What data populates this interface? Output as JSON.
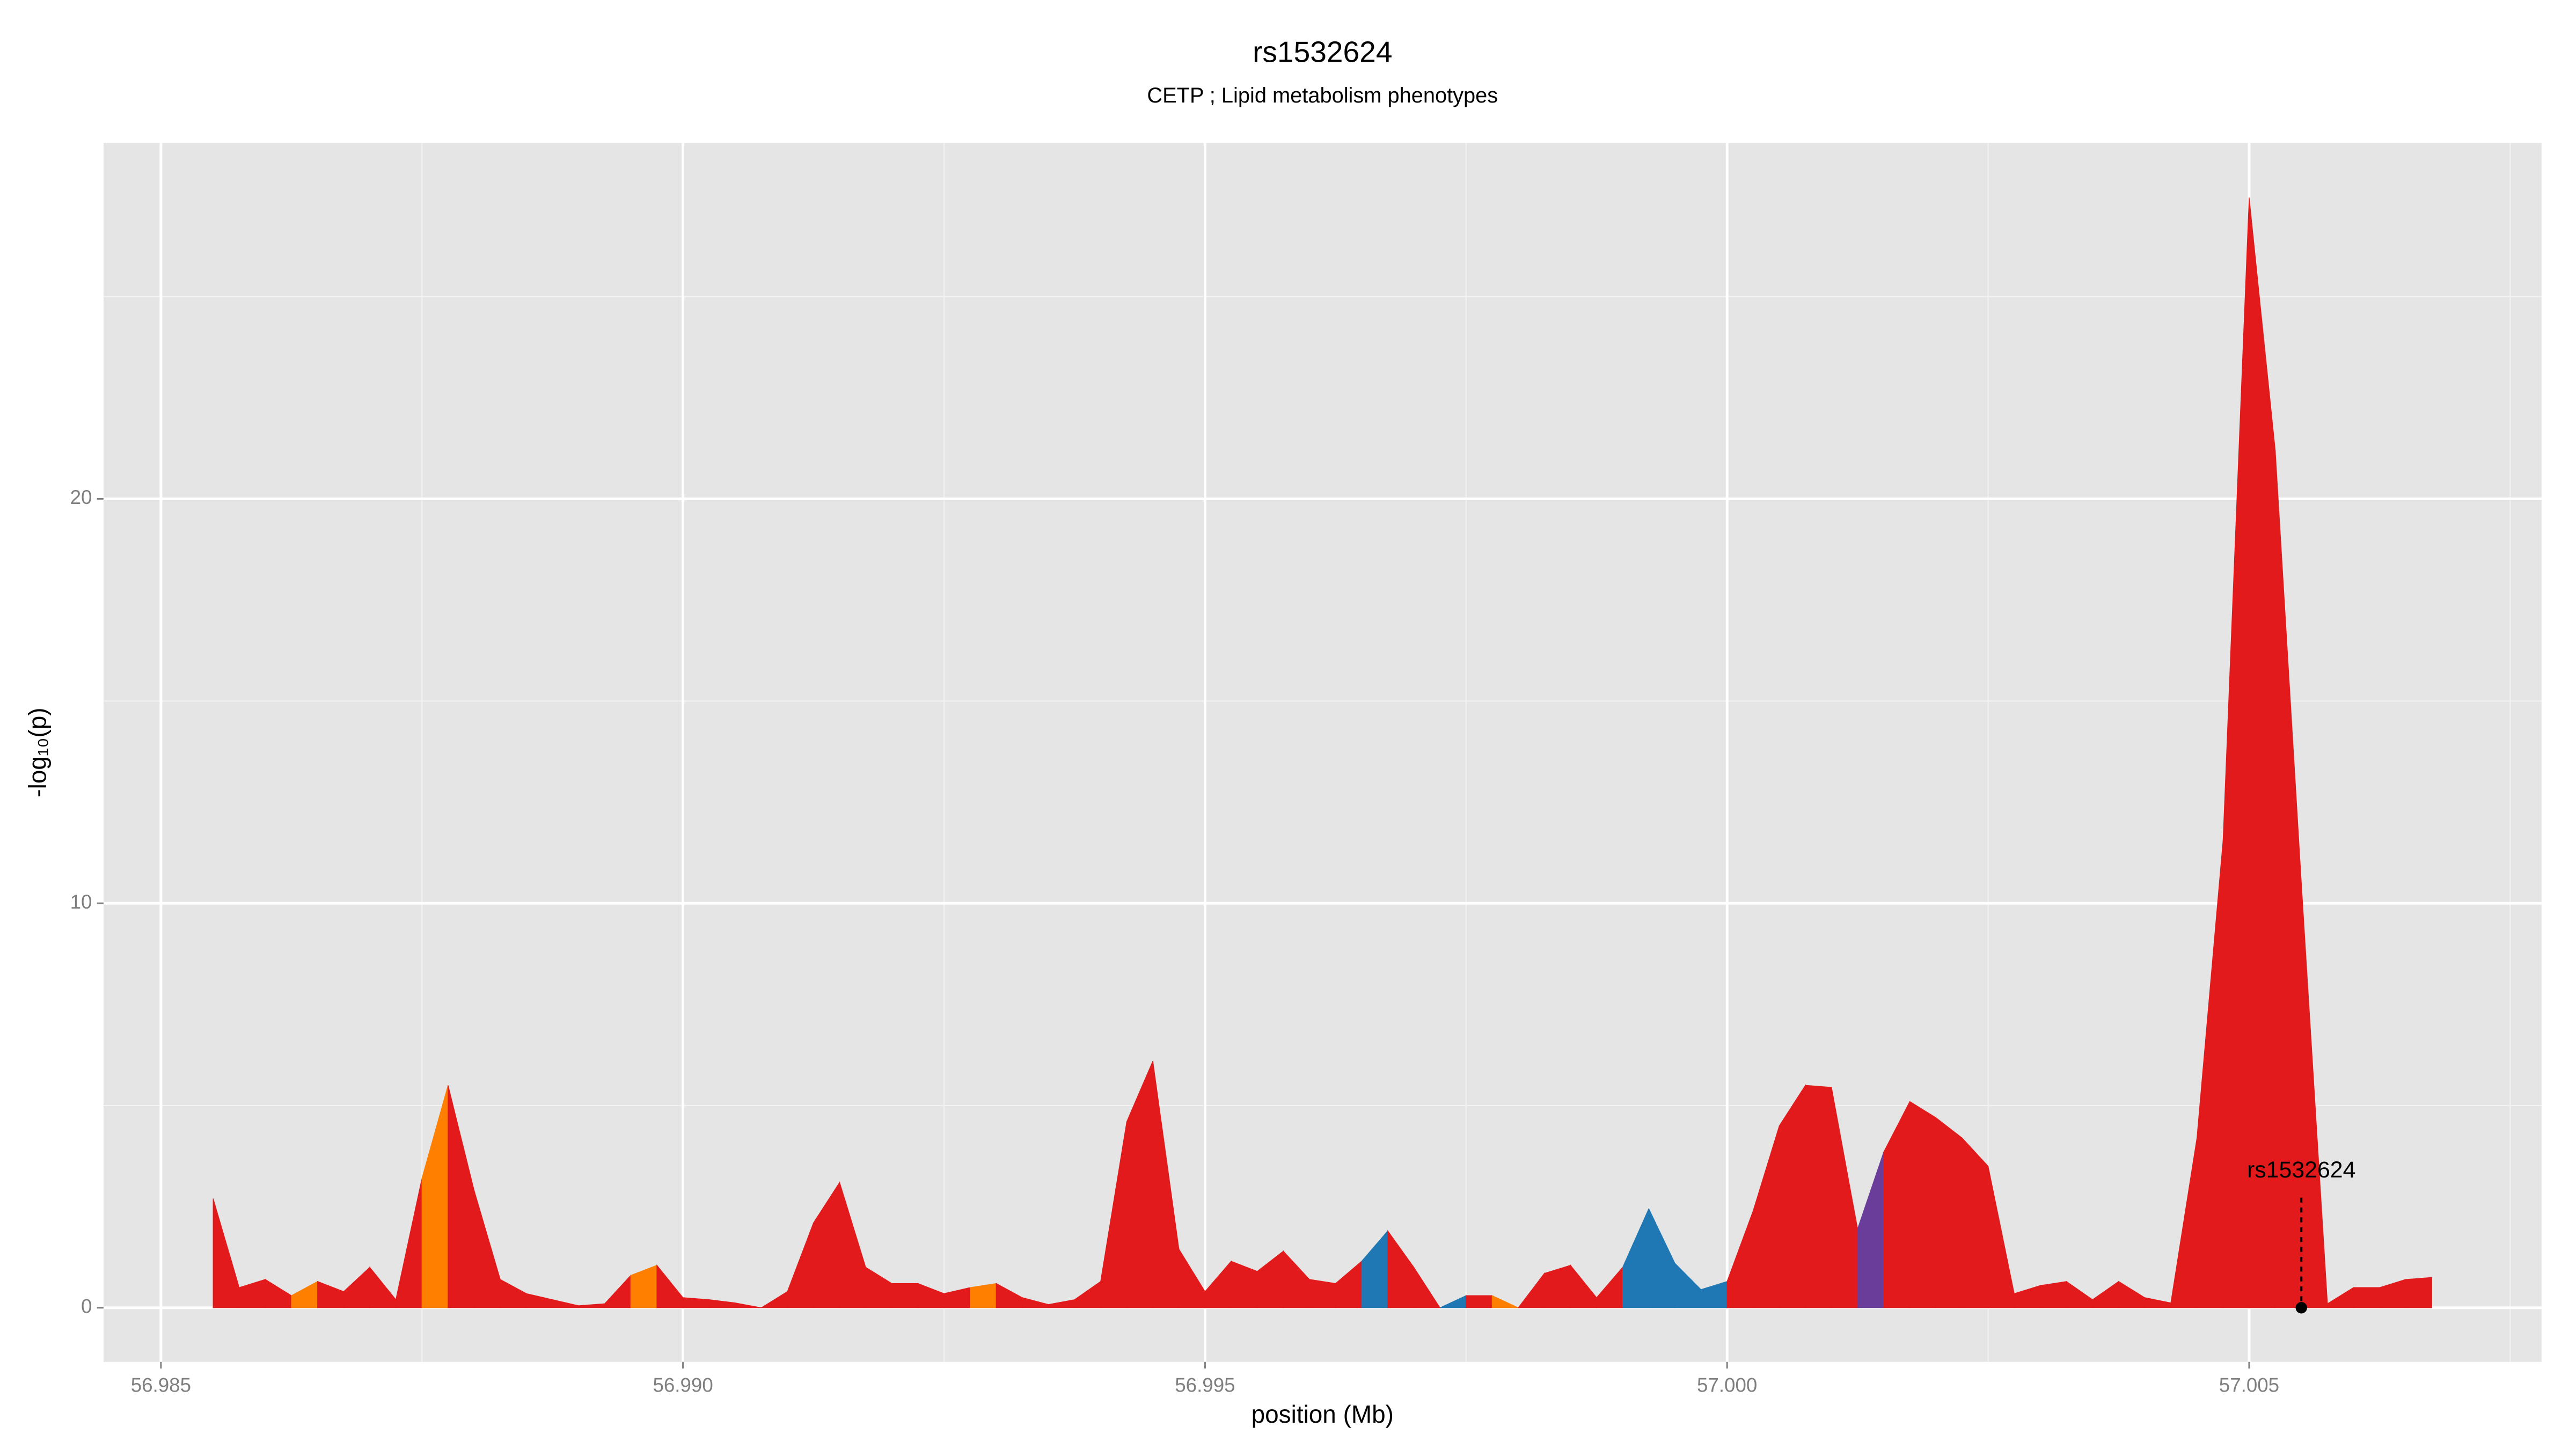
{
  "chart_data": {
    "type": "area",
    "title": "rs1532624",
    "subtitle": "CETP ; Lipid metabolism phenotypes",
    "x_label": "position (Mb)",
    "y_label": "-log₁₀(p)",
    "x": [
      56.9855,
      56.98575,
      56.986,
      56.98625,
      56.9865,
      56.98675,
      56.987,
      56.98725,
      56.9875,
      56.98775,
      56.988,
      56.98825,
      56.9885,
      56.98875,
      56.989,
      56.98925,
      56.9895,
      56.98975,
      56.99,
      56.99025,
      56.9905,
      56.99075,
      56.991,
      56.99125,
      56.9915,
      56.99175,
      56.992,
      56.99225,
      56.9925,
      56.99275,
      56.993,
      56.99325,
      56.9935,
      56.99375,
      56.994,
      56.99425,
      56.9945,
      56.99475,
      56.995,
      56.99525,
      56.9955,
      56.99575,
      56.996,
      56.99625,
      56.9965,
      56.99675,
      56.997,
      56.99725,
      56.9975,
      56.99775,
      56.998,
      56.99825,
      56.9985,
      56.99875,
      56.999,
      56.99925,
      56.9995,
      56.99975,
      57.0,
      57.00025,
      57.0005,
      57.00075,
      57.001,
      57.00125,
      57.0015,
      57.00175,
      57.002,
      57.00225,
      57.0025,
      57.00275,
      57.003,
      57.00325,
      57.0035,
      57.00375,
      57.004,
      57.00425,
      57.0045,
      57.00475,
      57.005,
      57.00525,
      57.0055,
      57.00575,
      57.006,
      57.00625,
      57.0065,
      57.00675
    ],
    "values": [
      2.7,
      0.5,
      0.7,
      0.3,
      0.65,
      0.4,
      1.0,
      0.2,
      3.2,
      5.5,
      2.9,
      0.7,
      0.35,
      0.2,
      0.05,
      0.1,
      0.8,
      1.05,
      0.25,
      0.2,
      0.12,
      0.0,
      0.4,
      2.1,
      3.1,
      1.0,
      0.6,
      0.6,
      0.35,
      0.5,
      0.6,
      0.25,
      0.08,
      0.2,
      0.65,
      4.6,
      6.1,
      1.45,
      0.4,
      1.15,
      0.9,
      1.4,
      0.7,
      0.6,
      1.15,
      1.9,
      1.0,
      0.0,
      0.3,
      0.3,
      0.0,
      0.85,
      1.05,
      0.25,
      1.0,
      2.45,
      1.1,
      0.45,
      0.65,
      2.4,
      4.5,
      5.5,
      5.45,
      1.95,
      3.85,
      5.1,
      4.7,
      4.2,
      3.5,
      0.35,
      0.55,
      0.65,
      0.2,
      0.65,
      0.25,
      0.12,
      4.2,
      11.55,
      27.45,
      21.2,
      10.5,
      0.1,
      0.5,
      0.5,
      0.7,
      0.75
    ],
    "colors": [
      "#E31A1C",
      "#E31A1C",
      "#E31A1C",
      "#FF7F00",
      "#E31A1C",
      "#E31A1C",
      "#E31A1C",
      "#E31A1C",
      "#FF7F00",
      "#E31A1C",
      "#E31A1C",
      "#E31A1C",
      "#E31A1C",
      "#E31A1C",
      "#E31A1C",
      "#E31A1C",
      "#FF7F00",
      "#E31A1C",
      "#E31A1C",
      "#E31A1C",
      "#E31A1C",
      "#E31A1C",
      "#E31A1C",
      "#E31A1C",
      "#E31A1C",
      "#E31A1C",
      "#E31A1C",
      "#E31A1C",
      "#E31A1C",
      "#FF7F00",
      "#E31A1C",
      "#E31A1C",
      "#E31A1C",
      "#E31A1C",
      "#E31A1C",
      "#E31A1C",
      "#E31A1C",
      "#E31A1C",
      "#E31A1C",
      "#E31A1C",
      "#E31A1C",
      "#E31A1C",
      "#E31A1C",
      "#E31A1C",
      "#1F78B4",
      "#E31A1C",
      "#E31A1C",
      "#1F78B4",
      "#E31A1C",
      "#FF7F00",
      "#E31A1C",
      "#E31A1C",
      "#E31A1C",
      "#E31A1C",
      "#1F78B4",
      "#1F78B4",
      "#1F78B4",
      "#1F78B4",
      "#E31A1C",
      "#E31A1C",
      "#E31A1C",
      "#E31A1C",
      "#E31A1C",
      "#6A3D9A",
      "#E31A1C",
      "#E31A1C",
      "#E31A1C",
      "#E31A1C",
      "#E31A1C",
      "#E31A1C",
      "#E31A1C",
      "#E31A1C",
      "#E31A1C",
      "#E31A1C",
      "#E31A1C",
      "#E31A1C",
      "#E31A1C",
      "#E31A1C",
      "#E31A1C",
      "#E31A1C",
      "#E31A1C",
      "#E31A1C",
      "#E31A1C",
      "#E31A1C",
      "#E31A1C",
      "#E31A1C"
    ],
    "xlim": [
      56.98445,
      57.0078
    ],
    "ylim": [
      -1.34,
      28.8
    ],
    "xticks": [
      56.985,
      {
        "value": 56.99,
        "label": "56.990"
      },
      56.995,
      {
        "value": 57.0,
        "label": "57.000"
      },
      57.005
    ],
    "yticks": [
      0,
      10,
      20
    ],
    "grid": true,
    "annotation": {
      "text": "rs1532624",
      "x": 57.0055,
      "y": 0
    }
  }
}
